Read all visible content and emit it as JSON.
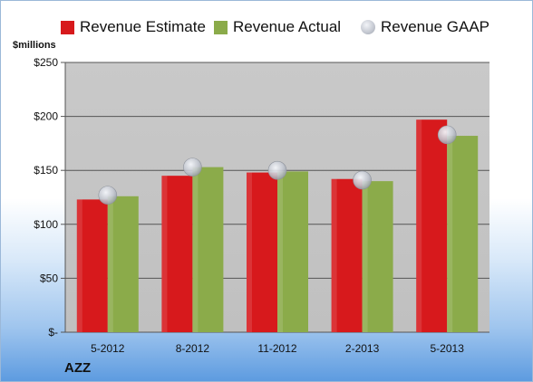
{
  "chart_data": {
    "type": "bar",
    "title": "",
    "unit_label": "$millions",
    "company": "AZZ",
    "categories": [
      "5-2012",
      "8-2012",
      "11-2012",
      "2-2013",
      "5-2013"
    ],
    "series": [
      {
        "name": "Revenue Estimate",
        "kind": "bar",
        "color": "#d7191c",
        "values": [
          123,
          145,
          148,
          142,
          197
        ]
      },
      {
        "name": "Revenue Actual",
        "kind": "bar",
        "color": "#8bab4a",
        "values": [
          126,
          153,
          149,
          140,
          182
        ]
      },
      {
        "name": "Revenue GAAP",
        "kind": "marker",
        "color": "#b8bcc6",
        "values": [
          127,
          153,
          150,
          141,
          183
        ]
      }
    ],
    "yticks": [
      0,
      50,
      100,
      150,
      200,
      250
    ],
    "ytick_labels": [
      "$-",
      "$50",
      "$100",
      "$150",
      "$200",
      "$250"
    ],
    "ylim": [
      0,
      250
    ],
    "grid": true,
    "legend_position": "top"
  }
}
